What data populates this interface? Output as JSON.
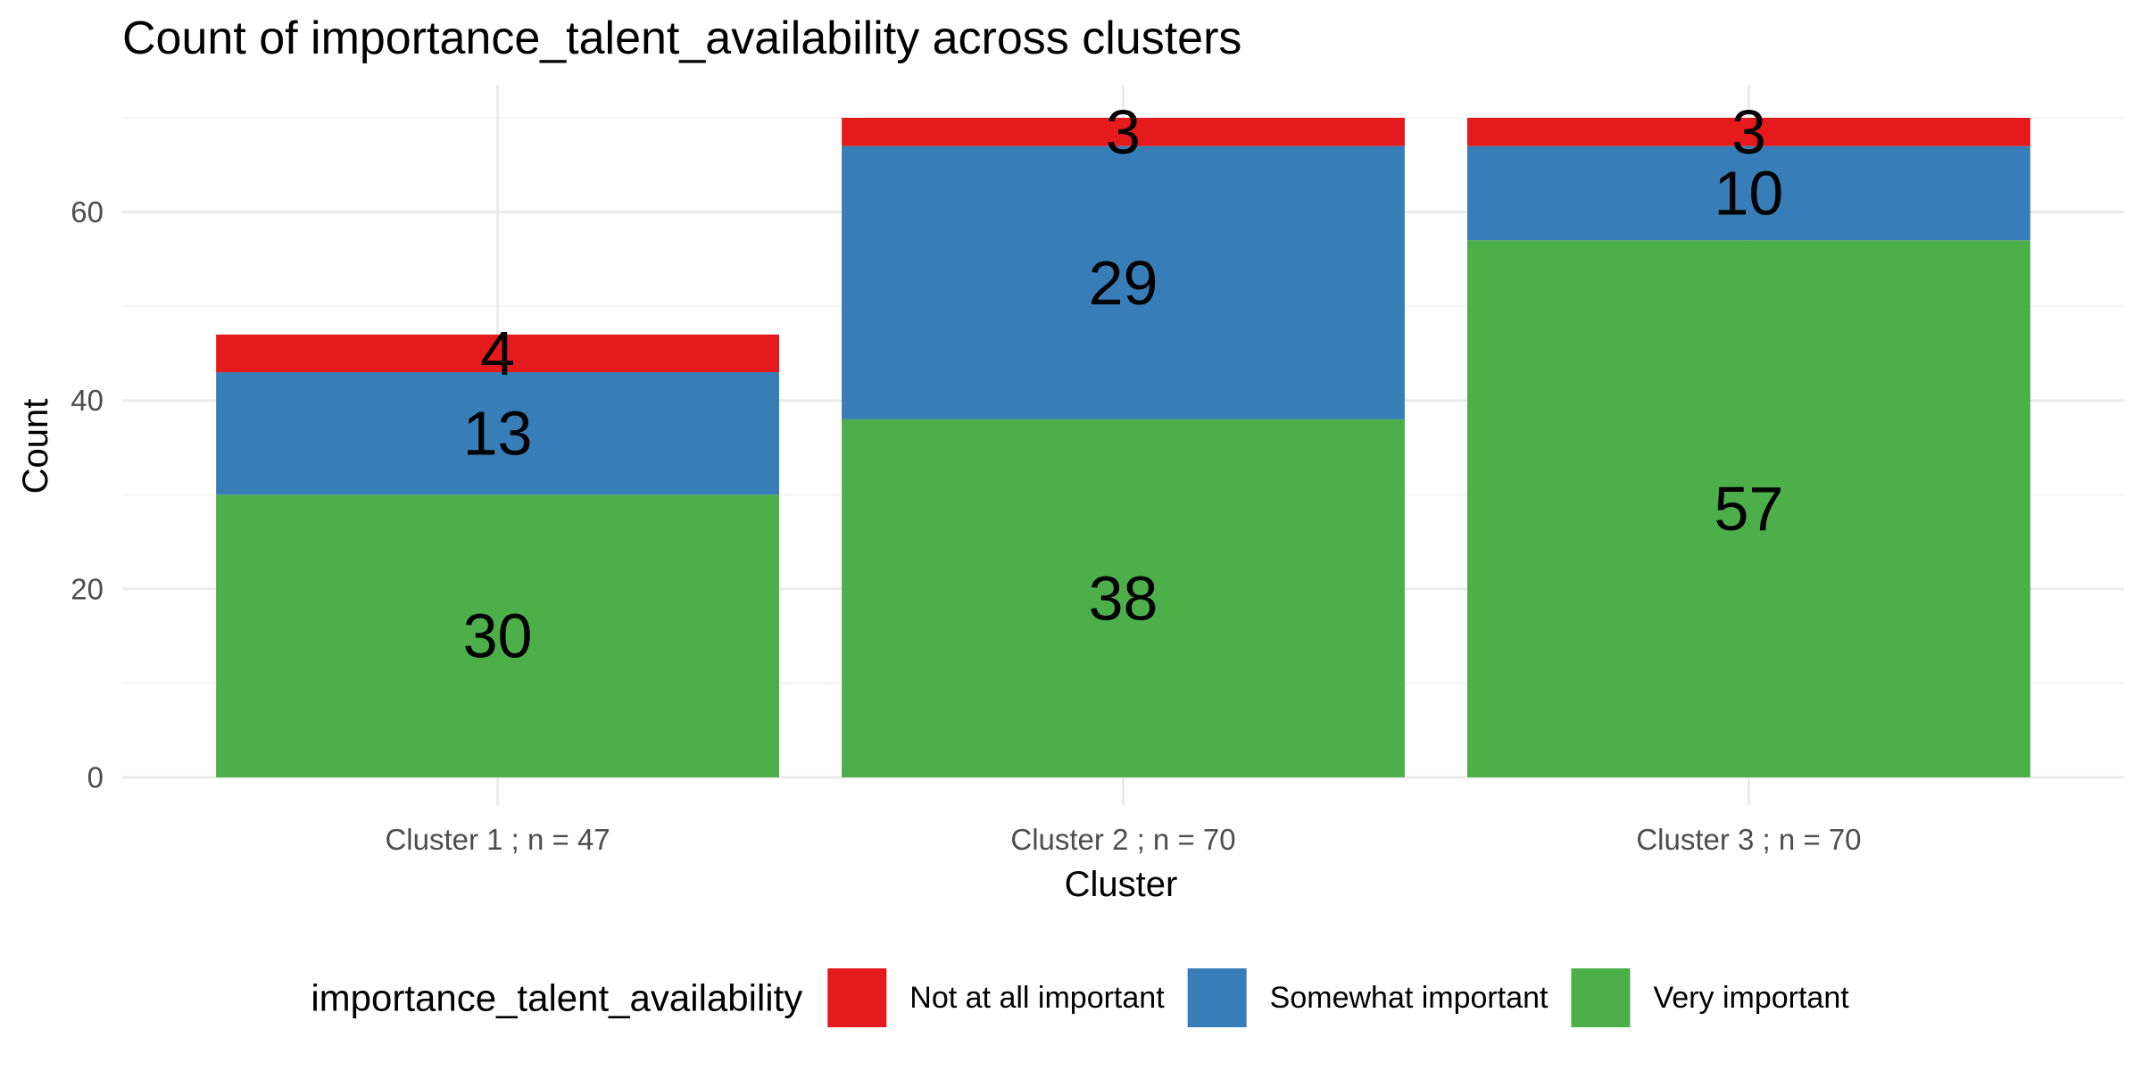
{
  "chart_data": {
    "type": "bar",
    "stacked": true,
    "title": "Count of importance_talent_availability across clusters",
    "xlabel": "Cluster",
    "ylabel": "Count",
    "categories": [
      "Cluster 1 ; n = 47",
      "Cluster 2 ; n = 70",
      "Cluster 3 ; n = 70"
    ],
    "series": [
      {
        "name": "Very important",
        "color": "#4daf4a",
        "values": [
          30,
          38,
          57
        ]
      },
      {
        "name": "Somewhat important",
        "color": "#377eb8",
        "values": [
          13,
          29,
          10
        ]
      },
      {
        "name": "Not at all important",
        "color": "#e41a1c",
        "values": [
          4,
          3,
          3
        ]
      }
    ],
    "ylim": [
      0,
      73.5
    ],
    "yticks": [
      0,
      20,
      40,
      60
    ],
    "grid": true,
    "legend": {
      "title": "importance_talent_availability",
      "position": "bottom",
      "order": [
        "Not at all important",
        "Somewhat important",
        "Very important"
      ]
    }
  }
}
